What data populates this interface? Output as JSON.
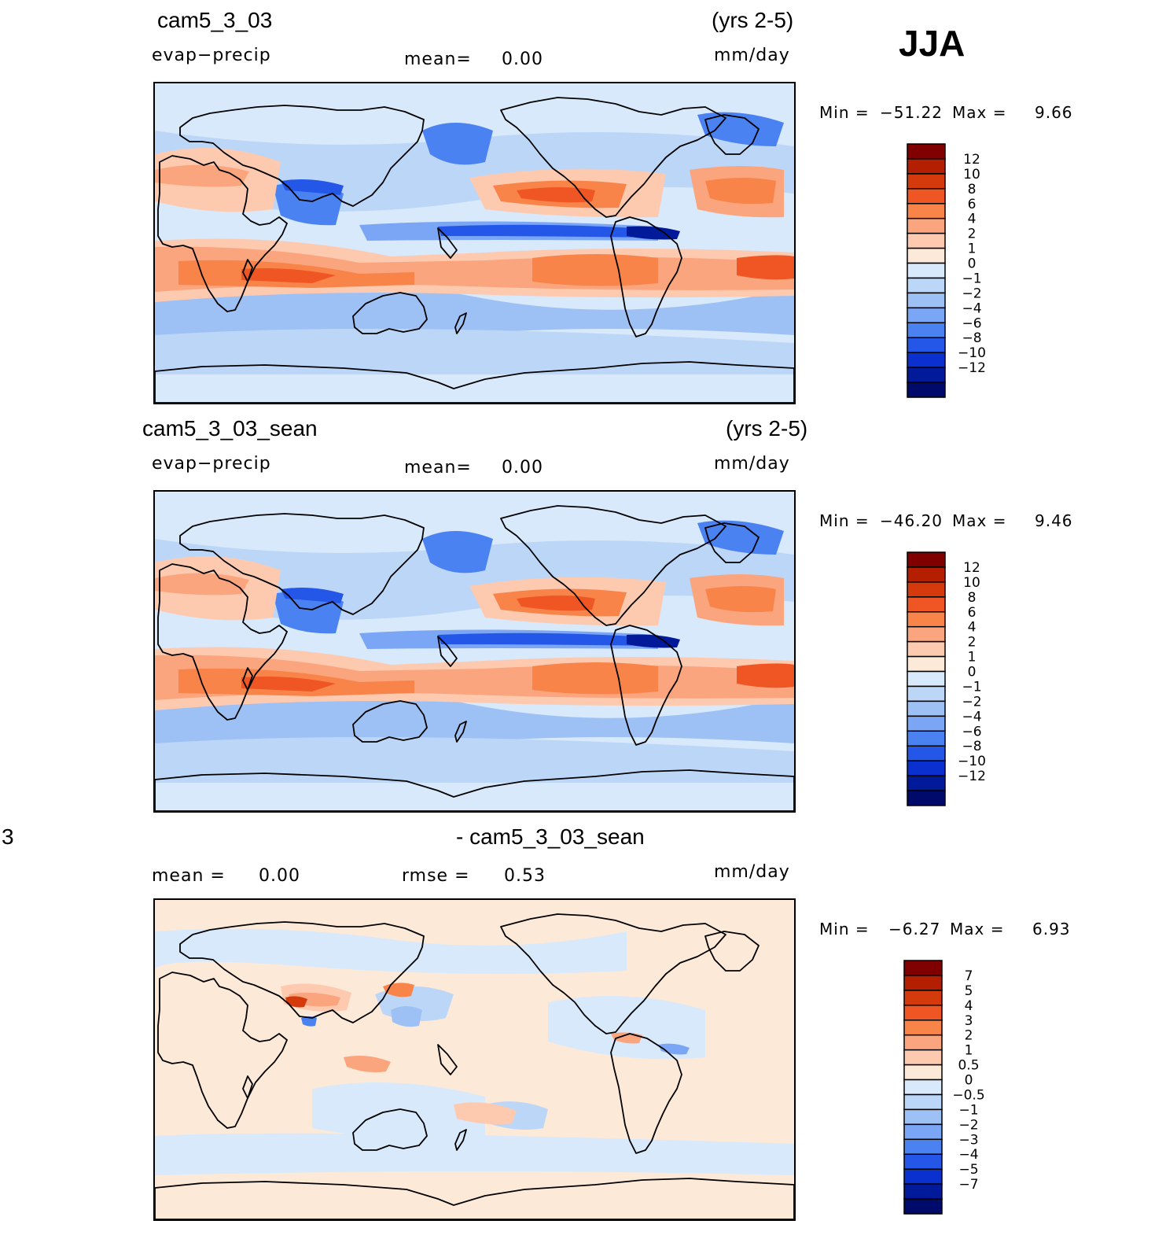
{
  "season": "JJA",
  "panels": [
    {
      "id": "top",
      "case_title": "cam5_3_03",
      "years": "(yrs 2-5)",
      "variable": "evap−precip",
      "mean_label": "mean=",
      "mean_value": "0.00",
      "units": "mm/day",
      "min_label": "Min =",
      "min_value": "−51.22",
      "max_label": "Max =",
      "max_value": "9.66",
      "colorbar": {
        "labels": [
          "12",
          "10",
          "8",
          "6",
          "4",
          "2",
          "1",
          "0",
          "−1",
          "−2",
          "−4",
          "−6",
          "−8",
          "−10",
          "−12"
        ],
        "colors": [
          "#800000",
          "#b31f00",
          "#d53a0c",
          "#ef5623",
          "#f8844a",
          "#fba57e",
          "#fdcab0",
          "#fde9d8",
          "#d8e9fb",
          "#bcd6f7",
          "#9ec1f5",
          "#7aa6f5",
          "#4b82f2",
          "#2457e8",
          "#0a30d0",
          "#001a99",
          "#000a6b"
        ]
      }
    },
    {
      "id": "middle",
      "case_title": "cam5_3_03_sean",
      "years": "(yrs 2-5)",
      "variable": "evap−precip",
      "mean_label": "mean=",
      "mean_value": "0.00",
      "units": "mm/day",
      "min_label": "Min =",
      "min_value": "−46.20",
      "max_label": "Max =",
      "max_value": "9.46",
      "colorbar": {
        "labels": [
          "12",
          "10",
          "8",
          "6",
          "4",
          "2",
          "1",
          "0",
          "−1",
          "−2",
          "−4",
          "−6",
          "−8",
          "−10",
          "−12"
        ],
        "colors": [
          "#800000",
          "#b31f00",
          "#d53a0c",
          "#ef5623",
          "#f8844a",
          "#fba57e",
          "#fdcab0",
          "#fde9d8",
          "#d8e9fb",
          "#bcd6f7",
          "#9ec1f5",
          "#7aa6f5",
          "#4b82f2",
          "#2457e8",
          "#0a30d0",
          "#001a99",
          "#000a6b"
        ]
      }
    },
    {
      "id": "bottom",
      "case_title_left": "3",
      "case_title": "- cam5_3_03_sean",
      "mean_label": "mean =",
      "mean_value": "0.00",
      "rmse_label": "rmse =",
      "rmse_value": "0.53",
      "units": "mm/day",
      "min_label": "Min =",
      "min_value": "−6.27",
      "max_label": "Max =",
      "max_value": "6.93",
      "colorbar": {
        "labels": [
          "7",
          "5",
          "4",
          "3",
          "2",
          "1",
          "0.5",
          "0",
          "−0.5",
          "−1",
          "−2",
          "−3",
          "−4",
          "−5",
          "−7"
        ],
        "colors": [
          "#800000",
          "#b31f00",
          "#d53a0c",
          "#ef5623",
          "#f8844a",
          "#fba57e",
          "#fdcab0",
          "#fde9d8",
          "#d8e9fb",
          "#bcd6f7",
          "#9ec1f5",
          "#7aa6f5",
          "#4b82f2",
          "#2457e8",
          "#0a30d0",
          "#001a99",
          "#000a6b"
        ]
      }
    }
  ]
}
